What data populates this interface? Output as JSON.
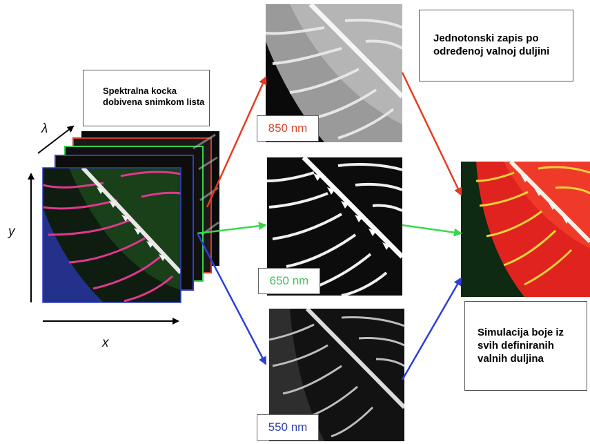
{
  "cube_label": "Spektralna kocka dobivena snimkom lista",
  "mono_label": "Jednotonski zapis po određenoj valnoj duljini",
  "sim_label": "Simulacija boje iz svih definiranih valnih duljina",
  "axes": {
    "lambda": "λ",
    "y": "y",
    "x": "x"
  },
  "bands": [
    {
      "label": "850 nm",
      "color": "#d9452b"
    },
    {
      "label": "650 nm",
      "color": "#3fbf5a"
    },
    {
      "label": "550 nm",
      "color": "#2f3fa8"
    }
  ],
  "colors": {
    "red_arrow": "#e83a1f",
    "green_arrow": "#39d84a",
    "blue_arrow": "#2c3fd6"
  }
}
